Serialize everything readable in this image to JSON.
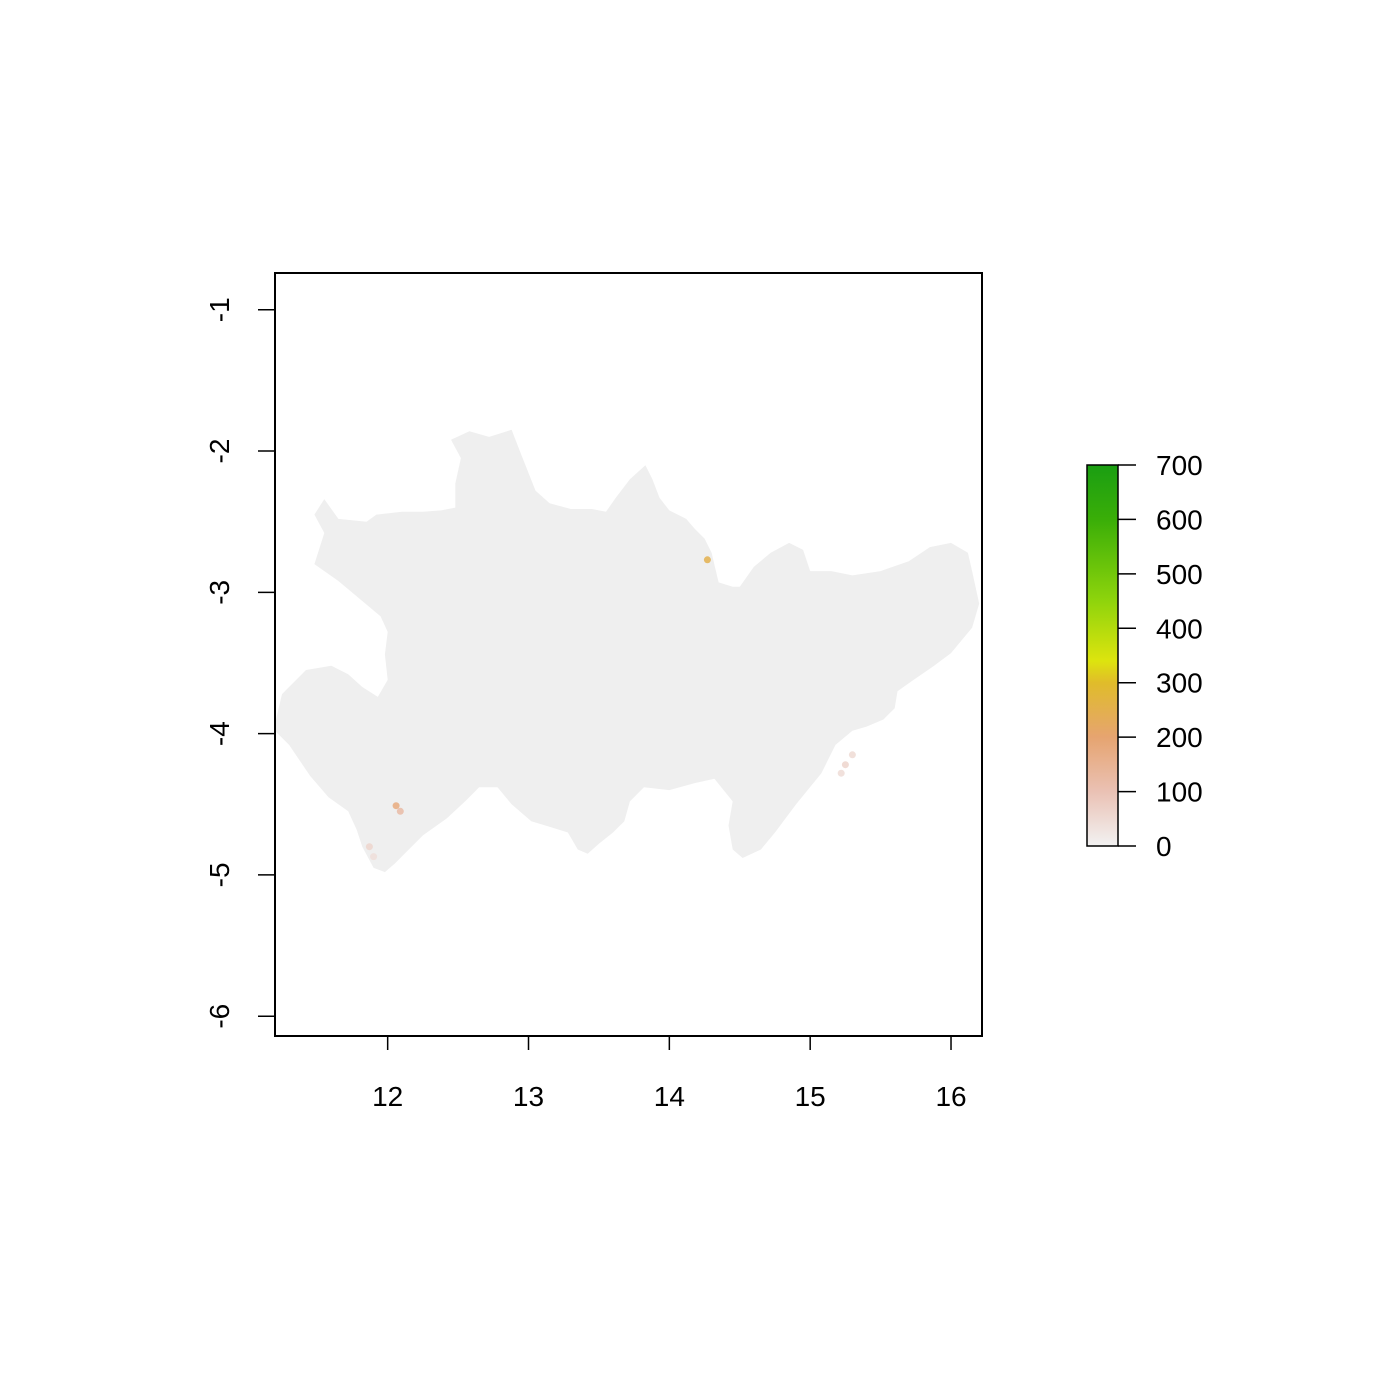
{
  "map": {
    "type": "raster-map",
    "x_axis": {
      "min": 11.2,
      "max": 16.22,
      "ticks": [
        12,
        13,
        14,
        15,
        16
      ],
      "tick_labels": [
        "12",
        "13",
        "14",
        "15",
        "16"
      ]
    },
    "y_axis": {
      "min": -6.14,
      "max": -0.74,
      "ticks": [
        -1,
        -2,
        -3,
        -4,
        -5,
        -6
      ],
      "tick_labels": [
        "-1",
        "-2",
        "-3",
        "-4",
        "-5",
        "-6"
      ]
    },
    "region_fill_color": "#efefef",
    "region_outline": [
      [
        11.2,
        -3.93
      ],
      [
        11.25,
        -3.72
      ],
      [
        11.42,
        -3.55
      ],
      [
        11.6,
        -3.52
      ],
      [
        11.72,
        -3.58
      ],
      [
        11.82,
        -3.67
      ],
      [
        11.93,
        -3.74
      ],
      [
        12.0,
        -3.62
      ],
      [
        11.98,
        -3.44
      ],
      [
        12.0,
        -3.28
      ],
      [
        11.95,
        -3.17
      ],
      [
        11.65,
        -2.92
      ],
      [
        11.48,
        -2.8
      ],
      [
        11.55,
        -2.58
      ],
      [
        11.48,
        -2.45
      ],
      [
        11.55,
        -2.34
      ],
      [
        11.65,
        -2.48
      ],
      [
        11.85,
        -2.5
      ],
      [
        11.92,
        -2.45
      ],
      [
        12.1,
        -2.43
      ],
      [
        12.25,
        -2.43
      ],
      [
        12.38,
        -2.42
      ],
      [
        12.48,
        -2.4
      ],
      [
        12.48,
        -2.23
      ],
      [
        12.52,
        -2.05
      ],
      [
        12.45,
        -1.92
      ],
      [
        12.58,
        -1.86
      ],
      [
        12.72,
        -1.9
      ],
      [
        12.88,
        -1.85
      ],
      [
        12.95,
        -2.03
      ],
      [
        13.05,
        -2.28
      ],
      [
        13.15,
        -2.37
      ],
      [
        13.3,
        -2.41
      ],
      [
        13.45,
        -2.41
      ],
      [
        13.55,
        -2.43
      ],
      [
        13.62,
        -2.33
      ],
      [
        13.72,
        -2.2
      ],
      [
        13.83,
        -2.1
      ],
      [
        13.88,
        -2.2
      ],
      [
        13.93,
        -2.33
      ],
      [
        14.0,
        -2.42
      ],
      [
        14.12,
        -2.48
      ],
      [
        14.18,
        -2.55
      ],
      [
        14.25,
        -2.62
      ],
      [
        14.3,
        -2.72
      ],
      [
        14.35,
        -2.93
      ],
      [
        14.45,
        -2.96
      ],
      [
        14.5,
        -2.96
      ],
      [
        14.6,
        -2.82
      ],
      [
        14.72,
        -2.72
      ],
      [
        14.85,
        -2.65
      ],
      [
        14.95,
        -2.7
      ],
      [
        15.0,
        -2.85
      ],
      [
        15.15,
        -2.85
      ],
      [
        15.3,
        -2.88
      ],
      [
        15.5,
        -2.85
      ],
      [
        15.7,
        -2.78
      ],
      [
        15.85,
        -2.68
      ],
      [
        16.0,
        -2.65
      ],
      [
        16.12,
        -2.72
      ],
      [
        16.15,
        -2.85
      ],
      [
        16.2,
        -3.08
      ],
      [
        16.15,
        -3.25
      ],
      [
        16.0,
        -3.43
      ],
      [
        15.88,
        -3.52
      ],
      [
        15.72,
        -3.63
      ],
      [
        15.62,
        -3.7
      ],
      [
        15.6,
        -3.82
      ],
      [
        15.52,
        -3.9
      ],
      [
        15.4,
        -3.95
      ],
      [
        15.3,
        -3.98
      ],
      [
        15.18,
        -4.08
      ],
      [
        15.08,
        -4.28
      ],
      [
        14.9,
        -4.5
      ],
      [
        14.75,
        -4.7
      ],
      [
        14.65,
        -4.82
      ],
      [
        14.52,
        -4.88
      ],
      [
        14.45,
        -4.82
      ],
      [
        14.42,
        -4.65
      ],
      [
        14.45,
        -4.48
      ],
      [
        14.32,
        -4.32
      ],
      [
        14.18,
        -4.35
      ],
      [
        14.0,
        -4.4
      ],
      [
        13.82,
        -4.38
      ],
      [
        13.72,
        -4.48
      ],
      [
        13.68,
        -4.62
      ],
      [
        13.6,
        -4.7
      ],
      [
        13.5,
        -4.78
      ],
      [
        13.42,
        -4.85
      ],
      [
        13.35,
        -4.82
      ],
      [
        13.28,
        -4.7
      ],
      [
        13.12,
        -4.65
      ],
      [
        13.02,
        -4.62
      ],
      [
        12.88,
        -4.5
      ],
      [
        12.78,
        -4.38
      ],
      [
        12.65,
        -4.38
      ],
      [
        12.55,
        -4.48
      ],
      [
        12.42,
        -4.6
      ],
      [
        12.25,
        -4.72
      ],
      [
        12.15,
        -4.82
      ],
      [
        12.05,
        -4.92
      ],
      [
        11.98,
        -4.98
      ],
      [
        11.9,
        -4.95
      ],
      [
        11.82,
        -4.8
      ],
      [
        11.78,
        -4.68
      ],
      [
        11.72,
        -4.55
      ],
      [
        11.58,
        -4.45
      ],
      [
        11.45,
        -4.3
      ],
      [
        11.3,
        -4.08
      ],
      [
        11.2,
        -3.98
      ]
    ],
    "hotspots": [
      {
        "x": 12.06,
        "y": -4.51,
        "value": 180
      },
      {
        "x": 12.09,
        "y": -4.55,
        "value": 120
      },
      {
        "x": 11.87,
        "y": -4.8,
        "value": 60
      },
      {
        "x": 11.9,
        "y": -4.87,
        "value": 40
      },
      {
        "x": 14.27,
        "y": -2.77,
        "value": 250
      },
      {
        "x": 15.25,
        "y": -4.22,
        "value": 60
      },
      {
        "x": 15.3,
        "y": -4.15,
        "value": 50
      },
      {
        "x": 15.22,
        "y": -4.28,
        "value": 45
      }
    ]
  },
  "legend": {
    "min": 0,
    "max": 700,
    "tick_values": [
      0,
      100,
      200,
      300,
      400,
      500,
      600,
      700
    ],
    "tick_labels": [
      "0",
      "100",
      "200",
      "300",
      "400",
      "500",
      "600",
      "700"
    ],
    "color_stops": [
      {
        "value": 0,
        "color": "#f2f2f2"
      },
      {
        "value": 100,
        "color": "#eac1b4"
      },
      {
        "value": 200,
        "color": "#e6a470"
      },
      {
        "value": 300,
        "color": "#e0bc2a"
      },
      {
        "value": 340,
        "color": "#dde40e"
      },
      {
        "value": 450,
        "color": "#8fd40c"
      },
      {
        "value": 600,
        "color": "#3aae08"
      },
      {
        "value": 700,
        "color": "#1a9e12"
      }
    ]
  }
}
